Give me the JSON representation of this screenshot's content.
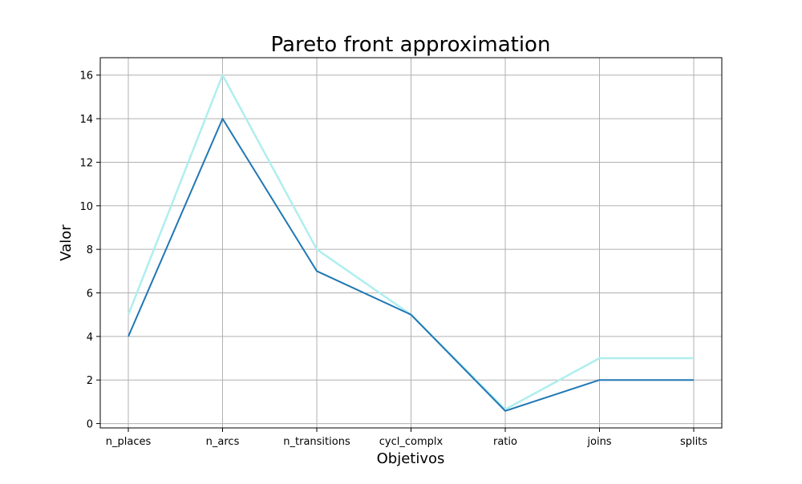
{
  "chart_data": {
    "type": "line",
    "title": "Pareto front approximation",
    "xlabel": "Objetivos",
    "ylabel": "Valor",
    "categories": [
      "n_places",
      "n_arcs",
      "n_transitions",
      "cycl_complx",
      "ratio",
      "joins",
      "splits"
    ],
    "y_ticks": [
      0,
      2,
      4,
      6,
      8,
      10,
      12,
      14,
      16
    ],
    "ylim": [
      -0.2,
      16.8
    ],
    "grid": true,
    "series": [
      {
        "values": [
          5,
          16,
          8,
          5,
          0.65,
          3,
          3
        ],
        "color": "#afeeee"
      },
      {
        "values": [
          4,
          14,
          7,
          5,
          0.58,
          2,
          2
        ],
        "color": "#1f77b4"
      }
    ]
  },
  "colors": {
    "grid": "#b0b0b0",
    "axes": "#000000"
  }
}
